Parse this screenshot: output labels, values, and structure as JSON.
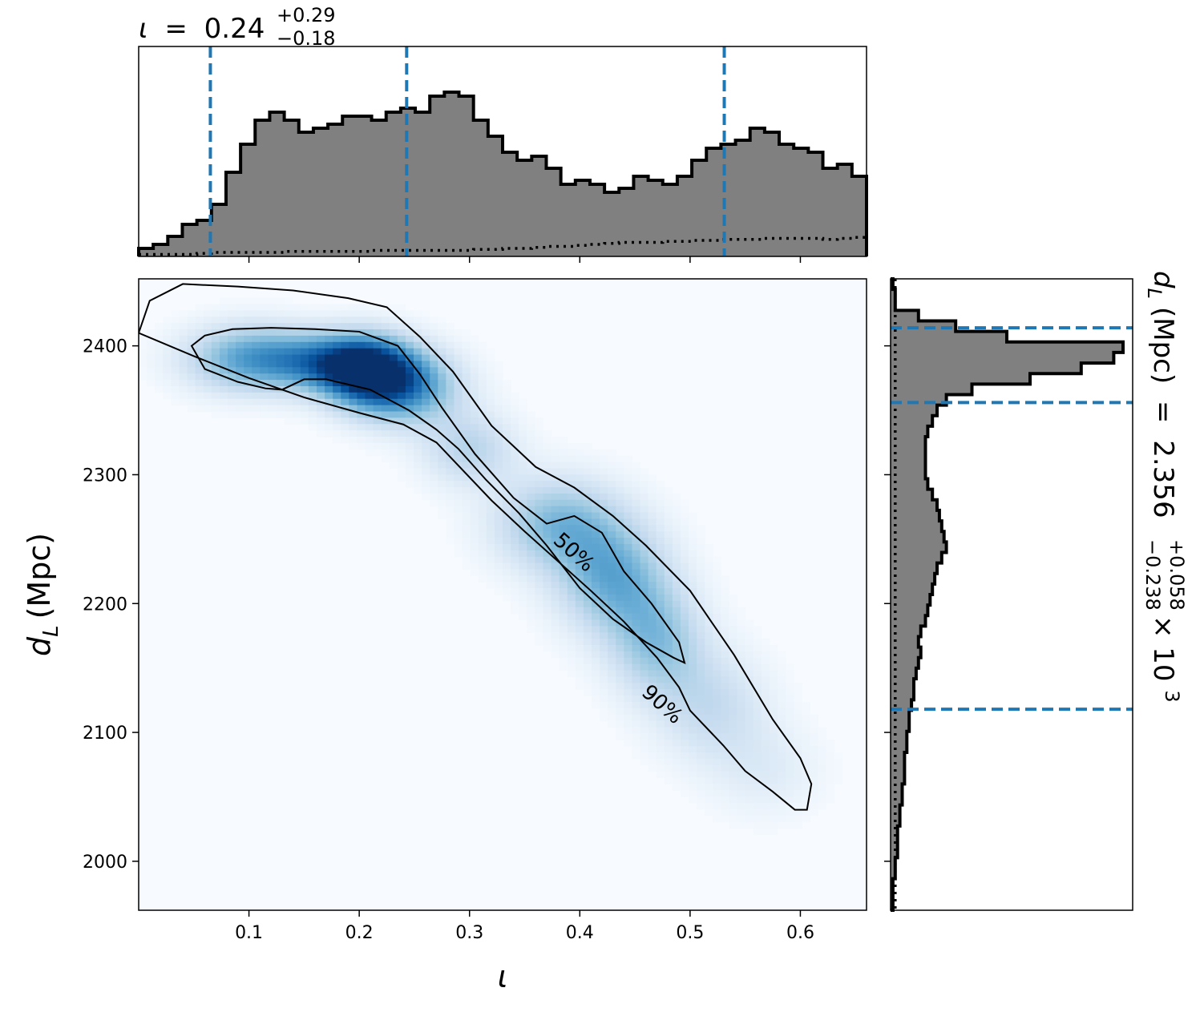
{
  "chart_data": [
    {
      "panel": "top-marginal",
      "type": "histogram",
      "title": {
        "symbol": "ι",
        "eq": "=",
        "median": "0.24",
        "upper": "+0.29",
        "lower": "−0.18"
      },
      "xlim": [
        0.0,
        0.66
      ],
      "bins_x": [
        0.0,
        0.66
      ],
      "bin_count": 50,
      "counts": [
        0.04,
        0.06,
        0.1,
        0.16,
        0.18,
        0.26,
        0.42,
        0.56,
        0.68,
        0.72,
        0.68,
        0.62,
        0.64,
        0.66,
        0.7,
        0.7,
        0.68,
        0.72,
        0.74,
        0.72,
        0.8,
        0.82,
        0.8,
        0.68,
        0.6,
        0.52,
        0.48,
        0.5,
        0.44,
        0.36,
        0.38,
        0.36,
        0.32,
        0.34,
        0.4,
        0.38,
        0.36,
        0.4,
        0.48,
        0.54,
        0.56,
        0.58,
        0.64,
        0.62,
        0.56,
        0.54,
        0.52,
        0.44,
        0.46,
        0.4
      ],
      "prior_levels": [
        0.01,
        0.01,
        0.01,
        0.01,
        0.015,
        0.02,
        0.02,
        0.02,
        0.02,
        0.02,
        0.025,
        0.025,
        0.025,
        0.025,
        0.025,
        0.025,
        0.03,
        0.03,
        0.03,
        0.03,
        0.03,
        0.03,
        0.03,
        0.035,
        0.035,
        0.04,
        0.04,
        0.045,
        0.05,
        0.05,
        0.055,
        0.06,
        0.065,
        0.07,
        0.07,
        0.07,
        0.075,
        0.075,
        0.08,
        0.08,
        0.085,
        0.085,
        0.085,
        0.09,
        0.09,
        0.09,
        0.09,
        0.085,
        0.09,
        0.095
      ],
      "quantile_lines_x": [
        0.065,
        0.243,
        0.531
      ],
      "xticks": [
        0.1,
        0.2,
        0.3,
        0.4,
        0.5,
        0.6
      ]
    },
    {
      "panel": "joint-2d",
      "type": "heatmap",
      "xlabel": "ι",
      "ylabel": "d_L (Mpc)",
      "xlim": [
        0.0,
        0.66
      ],
      "ylim": [
        1962,
        2452
      ],
      "xticks": [
        0.1,
        0.2,
        0.3,
        0.4,
        0.5,
        0.6
      ],
      "yticks": [
        2000,
        2100,
        2200,
        2300,
        2400
      ],
      "xtick_labels": [
        "0.1",
        "0.2",
        "0.3",
        "0.4",
        "0.5",
        "0.6"
      ],
      "ytick_labels": [
        "2000",
        "2100",
        "2200",
        "2300",
        "2400"
      ],
      "colormap": "Blues",
      "density_peaks": [
        {
          "x": 0.205,
          "y": 2382,
          "weight": 1.0,
          "sx": 0.03,
          "sy": 18
        },
        {
          "x": 0.24,
          "y": 2368,
          "weight": 0.65,
          "sx": 0.035,
          "sy": 20
        },
        {
          "x": 0.1,
          "y": 2390,
          "weight": 0.55,
          "sx": 0.04,
          "sy": 18
        },
        {
          "x": 0.16,
          "y": 2388,
          "weight": 0.45,
          "sx": 0.035,
          "sy": 15
        },
        {
          "x": 0.3,
          "y": 2320,
          "weight": 0.3,
          "sx": 0.03,
          "sy": 20
        },
        {
          "x": 0.38,
          "y": 2262,
          "weight": 0.45,
          "sx": 0.04,
          "sy": 25
        },
        {
          "x": 0.43,
          "y": 2220,
          "weight": 0.5,
          "sx": 0.035,
          "sy": 30
        },
        {
          "x": 0.47,
          "y": 2170,
          "weight": 0.4,
          "sx": 0.03,
          "sy": 30
        },
        {
          "x": 0.52,
          "y": 2120,
          "weight": 0.25,
          "sx": 0.035,
          "sy": 30
        },
        {
          "x": 0.57,
          "y": 2070,
          "weight": 0.12,
          "sx": 0.035,
          "sy": 25
        }
      ],
      "contours": [
        {
          "label": "50%",
          "label_pos": {
            "x": 0.395,
            "y": 2240
          },
          "points": [
            [
              0.048,
              2400
            ],
            [
              0.06,
              2408
            ],
            [
              0.085,
              2413
            ],
            [
              0.12,
              2414
            ],
            [
              0.16,
              2413
            ],
            [
              0.2,
              2411
            ],
            [
              0.235,
              2400
            ],
            [
              0.255,
              2378
            ],
            [
              0.275,
              2352
            ],
            [
              0.305,
              2316
            ],
            [
              0.34,
              2282
            ],
            [
              0.37,
              2262
            ],
            [
              0.395,
              2268
            ],
            [
              0.42,
              2255
            ],
            [
              0.44,
              2225
            ],
            [
              0.465,
              2200
            ],
            [
              0.49,
              2170
            ],
            [
              0.495,
              2154
            ],
            [
              0.485,
              2158
            ],
            [
              0.46,
              2170
            ],
            [
              0.43,
              2188
            ],
            [
              0.4,
              2212
            ],
            [
              0.37,
              2245
            ],
            [
              0.345,
              2270
            ],
            [
              0.315,
              2296
            ],
            [
              0.29,
              2320
            ],
            [
              0.27,
              2335
            ],
            [
              0.245,
              2350
            ],
            [
              0.21,
              2366
            ],
            [
              0.17,
              2374
            ],
            [
              0.15,
              2374
            ],
            [
              0.13,
              2366
            ],
            [
              0.115,
              2367
            ],
            [
              0.09,
              2372
            ],
            [
              0.06,
              2382
            ],
            [
              0.048,
              2400
            ]
          ]
        },
        {
          "label": "90%",
          "label_pos": {
            "x": 0.475,
            "y": 2122
          },
          "points": [
            [
              0.0,
              2410
            ],
            [
              0.01,
              2435
            ],
            [
              0.04,
              2448
            ],
            [
              0.09,
              2446
            ],
            [
              0.14,
              2443
            ],
            [
              0.19,
              2437
            ],
            [
              0.225,
              2430
            ],
            [
              0.255,
              2407
            ],
            [
              0.285,
              2380
            ],
            [
              0.32,
              2338
            ],
            [
              0.36,
              2306
            ],
            [
              0.395,
              2290
            ],
            [
              0.43,
              2268
            ],
            [
              0.46,
              2245
            ],
            [
              0.5,
              2210
            ],
            [
              0.54,
              2160
            ],
            [
              0.575,
              2110
            ],
            [
              0.6,
              2080
            ],
            [
              0.61,
              2060
            ],
            [
              0.606,
              2040
            ],
            [
              0.595,
              2040
            ],
            [
              0.575,
              2054
            ],
            [
              0.55,
              2070
            ],
            [
              0.53,
              2090
            ],
            [
              0.5,
              2117
            ],
            [
              0.49,
              2135
            ],
            [
              0.47,
              2158
            ],
            [
              0.44,
              2186
            ],
            [
              0.41,
              2210
            ],
            [
              0.38,
              2233
            ],
            [
              0.35,
              2256
            ],
            [
              0.32,
              2280
            ],
            [
              0.29,
              2307
            ],
            [
              0.27,
              2325
            ],
            [
              0.24,
              2339
            ],
            [
              0.2,
              2348
            ],
            [
              0.15,
              2360
            ],
            [
              0.1,
              2375
            ],
            [
              0.05,
              2392
            ],
            [
              0.0,
              2410
            ]
          ]
        }
      ]
    },
    {
      "panel": "right-marginal",
      "type": "histogram",
      "title": {
        "symbol": "d_L (Mpc)",
        "eq": "=",
        "median": "2.356",
        "upper": "+0.058",
        "lower": "−0.238",
        "factor": "× 10",
        "exponent": "3"
      },
      "ylim": [
        1962,
        2452
      ],
      "bins_y": [
        1962,
        2452
      ],
      "bin_count": 60,
      "counts": [
        0.01,
        0.01,
        0.01,
        0.02,
        0.02,
        0.03,
        0.03,
        0.03,
        0.04,
        0.04,
        0.05,
        0.05,
        0.06,
        0.06,
        0.06,
        0.07,
        0.07,
        0.08,
        0.08,
        0.09,
        0.1,
        0.1,
        0.11,
        0.12,
        0.13,
        0.12,
        0.13,
        0.15,
        0.16,
        0.17,
        0.18,
        0.19,
        0.2,
        0.22,
        0.24,
        0.23,
        0.22,
        0.21,
        0.2,
        0.18,
        0.16,
        0.15,
        0.15,
        0.15,
        0.15,
        0.16,
        0.18,
        0.2,
        0.24,
        0.35,
        0.6,
        0.82,
        0.96,
        1.0,
        0.5,
        0.28,
        0.12,
        0.02,
        0.02,
        0.01
      ],
      "prior_level": 0.02,
      "quantile_lines_y": [
        2118,
        2356,
        2414
      ]
    }
  ]
}
